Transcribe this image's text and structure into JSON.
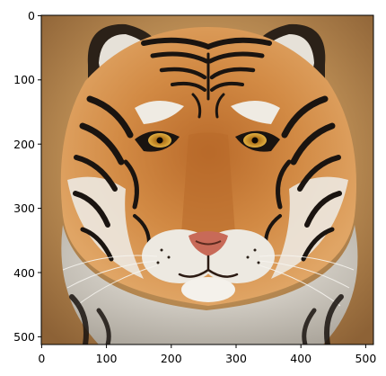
{
  "axes": {
    "x_ticks": [
      "0",
      "100",
      "200",
      "300",
      "400",
      "500"
    ],
    "y_ticks": [
      "0",
      "100",
      "200",
      "300",
      "400",
      "500"
    ],
    "x_range": [
      0,
      511
    ],
    "y_range": [
      0,
      511
    ],
    "y_inverted": true
  },
  "image": {
    "subject": "tiger-face"
  },
  "colors": {
    "axes_frame": "#000000",
    "background_tan": "#b88a52",
    "fur_orange": "#c97a34",
    "fur_white": "#e8e4dc",
    "stripe": "#1a1410",
    "nose_pink": "#c86a58"
  }
}
